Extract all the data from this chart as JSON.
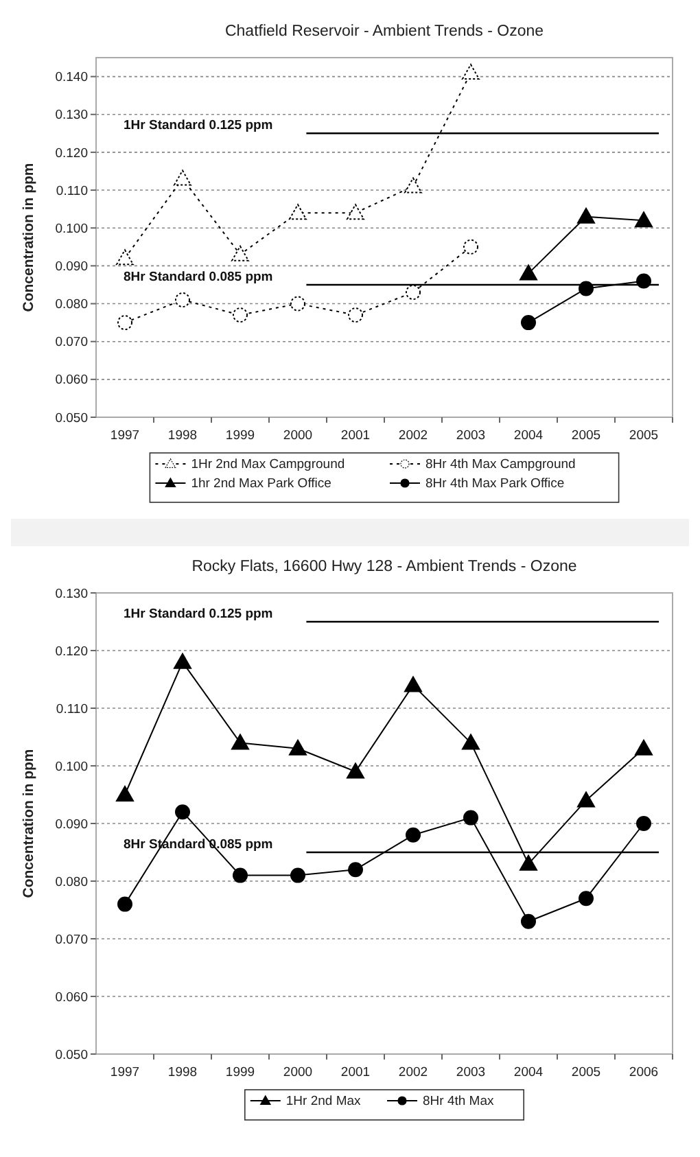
{
  "chart_data": [
    {
      "type": "line",
      "title": "Chatfield Reservoir - Ambient Trends - Ozone",
      "ylabel": "Concentration in ppm",
      "categories": [
        "1997",
        "1998",
        "1999",
        "2000",
        "2001",
        "2002",
        "2003",
        "2004",
        "2005",
        "2005"
      ],
      "series": [
        {
          "name": "1Hr 2nd Max Campground",
          "color": "#000000",
          "marker": "triangle",
          "line_style": "dotted",
          "values": [
            0.092,
            0.113,
            0.093,
            0.104,
            0.104,
            0.111,
            0.141,
            null,
            null,
            null
          ]
        },
        {
          "name": "8Hr 4th Max Campground",
          "color": "#000000",
          "marker": "circle",
          "line_style": "dotted",
          "values": [
            0.075,
            0.081,
            0.077,
            0.08,
            0.077,
            0.083,
            0.095,
            null,
            null,
            null
          ]
        },
        {
          "name": "1hr 2nd Max Park Office",
          "color": "#000000",
          "marker": "triangle",
          "line_style": "solid",
          "values": [
            null,
            null,
            null,
            null,
            null,
            null,
            null,
            0.088,
            0.103,
            0.102
          ]
        },
        {
          "name": "8Hr 4th Max Park Office",
          "color": "#000000",
          "marker": "circle",
          "line_style": "solid",
          "values": [
            null,
            null,
            null,
            null,
            null,
            null,
            null,
            0.075,
            0.084,
            0.086
          ]
        }
      ],
      "ylim": [
        0.05,
        0.145
      ],
      "yticks": [
        {
          "value": 0.05,
          "label": "0.050"
        },
        {
          "value": 0.06,
          "label": "0.060"
        },
        {
          "value": 0.07,
          "label": "0.070"
        },
        {
          "value": 0.08,
          "label": "0.080"
        },
        {
          "value": 0.09,
          "label": "0.090"
        },
        {
          "value": 0.1,
          "label": "0.100"
        },
        {
          "value": 0.11,
          "label": "0.110"
        },
        {
          "value": 0.12,
          "label": "0.120"
        },
        {
          "value": 0.13,
          "label": "0.130"
        },
        {
          "value": 0.14,
          "label": "0.140"
        }
      ],
      "ref_lines": [
        {
          "axis": "y",
          "value": 0.125,
          "label": "1Hr Standard 0.125 ppm",
          "color": "#000000"
        },
        {
          "axis": "y",
          "value": 0.085,
          "label": "8Hr Standard 0.085 ppm",
          "color": "#000000"
        }
      ],
      "grid": "y",
      "legend": "bottom"
    },
    {
      "type": "line",
      "title": "Rocky Flats, 16600 Hwy 128 - Ambient Trends - Ozone",
      "ylabel": "Concentration in ppm",
      "categories": [
        "1997",
        "1998",
        "1999",
        "2000",
        "2001",
        "2002",
        "2003",
        "2004",
        "2005",
        "2006"
      ],
      "series": [
        {
          "name": "1Hr 2nd Max",
          "color": "#000000",
          "marker": "triangle",
          "line_style": "solid",
          "values": [
            0.095,
            0.118,
            0.104,
            0.103,
            0.099,
            0.114,
            0.104,
            0.083,
            0.094,
            0.103
          ]
        },
        {
          "name": "8Hr 4th Max",
          "color": "#000000",
          "marker": "circle",
          "line_style": "solid",
          "values": [
            0.076,
            0.092,
            0.081,
            0.081,
            0.082,
            0.088,
            0.091,
            0.073,
            0.077,
            0.09
          ]
        }
      ],
      "ylim": [
        0.05,
        0.13
      ],
      "yticks": [
        {
          "value": 0.05,
          "label": "0.050"
        },
        {
          "value": 0.06,
          "label": "0.060"
        },
        {
          "value": 0.07,
          "label": "0.070"
        },
        {
          "value": 0.08,
          "label": "0.080"
        },
        {
          "value": 0.09,
          "label": "0.090"
        },
        {
          "value": 0.1,
          "label": "0.100"
        },
        {
          "value": 0.11,
          "label": "0.110"
        },
        {
          "value": 0.12,
          "label": "0.120"
        },
        {
          "value": 0.13,
          "label": "0.130"
        }
      ],
      "ref_lines": [
        {
          "axis": "y",
          "value": 0.125,
          "label": "1Hr Standard 0.125 ppm",
          "color": "#000000"
        },
        {
          "axis": "y",
          "value": 0.085,
          "label": "8Hr Standard 0.085 ppm",
          "color": "#000000"
        }
      ],
      "grid": "y",
      "legend": "bottom"
    }
  ]
}
